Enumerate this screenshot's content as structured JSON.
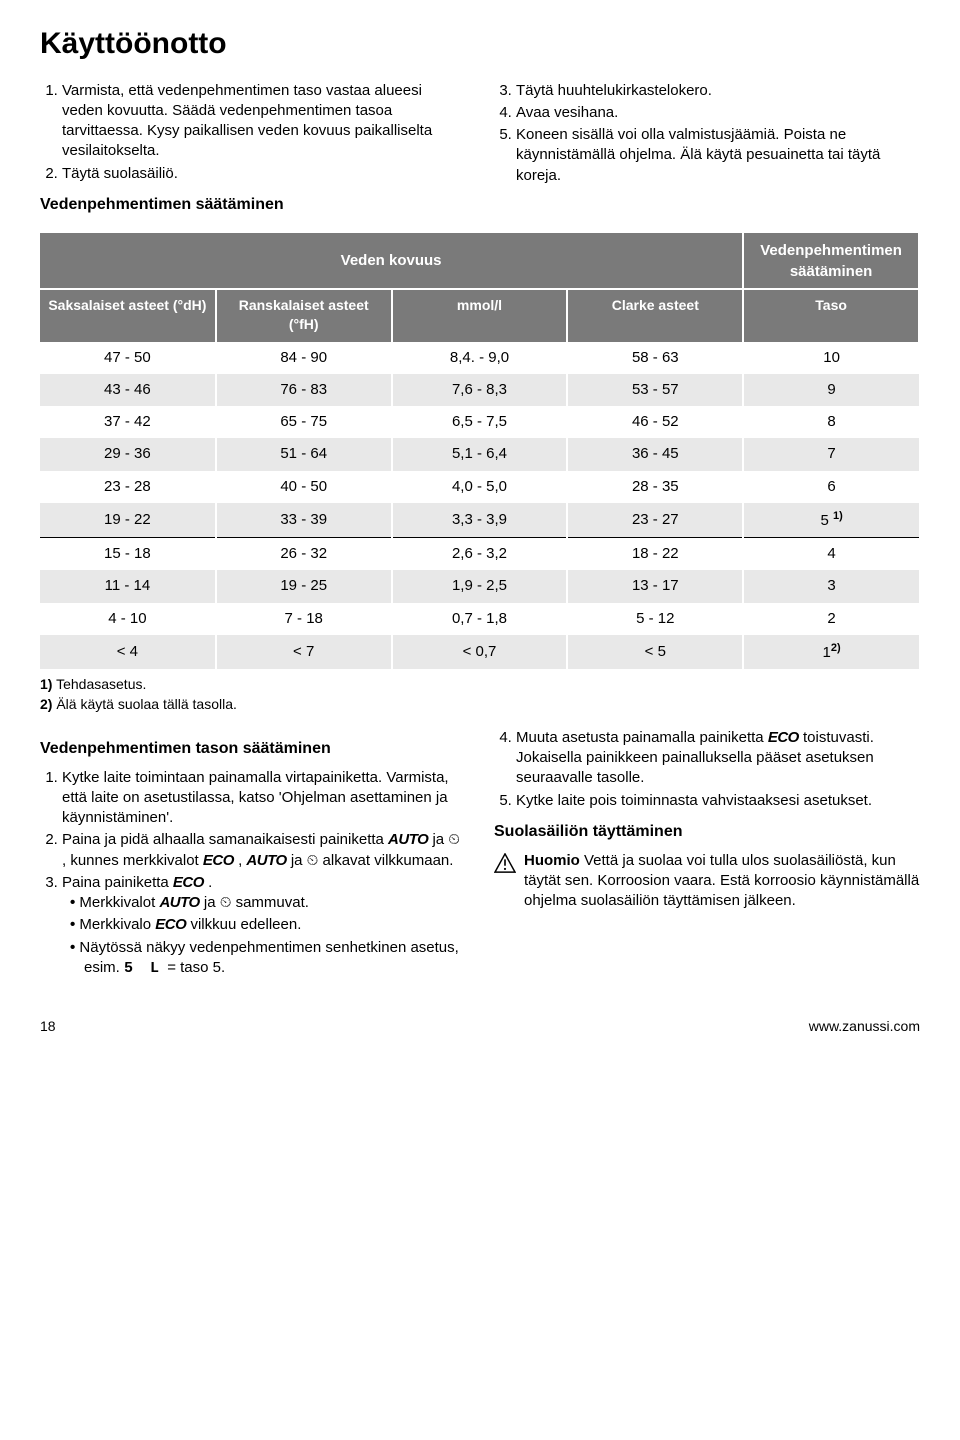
{
  "title": "Käyttöönotto",
  "left_list": [
    "Varmista, että vedenpehmentimen taso vastaa alueesi veden kovuutta. Säädä vedenpehmentimen tasoa tarvittaessa. Kysy paikallisen veden kovuus paikalliselta vesilaitokselta.",
    "Täytä suolasäiliö."
  ],
  "left_subhead": "Vedenpehmentimen säätäminen",
  "right_list_start": 3,
  "right_list": [
    "Täytä huuhtelukirkastelokero.",
    "Avaa vesihana.",
    "Koneen sisällä voi olla valmistusjäämiä. Poista ne käynnistämällä ohjelma. Älä käytä pesuainetta tai täytä koreja."
  ],
  "table": {
    "header_main_left": "Veden kovuus",
    "header_main_right": "Vedenpehmentimen säätäminen",
    "columns": [
      "Saksalaiset asteet (°dH)",
      "Ranskalaiset asteet (°fH)",
      "mmol/l",
      "Clarke asteet",
      "Taso"
    ],
    "col_widths": [
      "20%",
      "20%",
      "20%",
      "20%",
      "20%"
    ],
    "header_bg": "#7a7a7a",
    "header_fg": "#ffffff",
    "row_alt_bg": "#e8e8e8",
    "rows": [
      [
        "47 - 50",
        "84 - 90",
        "8,4. - 9,0",
        "58 - 63",
        "10"
      ],
      [
        "43 - 46",
        "76 - 83",
        "7,6 - 8,3",
        "53 - 57",
        "9"
      ],
      [
        "37 - 42",
        "65 - 75",
        "6,5 - 7,5",
        "46 - 52",
        "8"
      ],
      [
        "29 - 36",
        "51 - 64",
        "5,1 - 6,4",
        "36 - 45",
        "7"
      ],
      [
        "23 - 28",
        "40 - 50",
        "4,0 - 5,0",
        "28 - 35",
        "6"
      ],
      [
        "19 - 22",
        "33 - 39",
        "3,3 - 3,9",
        "23 - 27",
        "5 __SUP1__"
      ],
      [
        "15 - 18",
        "26 - 32",
        "2,6 - 3,2",
        "18 - 22",
        "4"
      ],
      [
        "11 - 14",
        "19 - 25",
        "1,9 - 2,5",
        "13 - 17",
        "3"
      ],
      [
        "4 - 10",
        "7 - 18",
        "0,7 - 1,8",
        "5 - 12",
        "2"
      ],
      [
        "< 4",
        "< 7",
        "< 0,7",
        "< 5",
        "1__SUP2__"
      ]
    ]
  },
  "footnote1": "1) Tehdasasetus.",
  "footnote2": "2) Älä käytä suolaa tällä tasolla.",
  "section2_left_head": "Vedenpehmentimen tason säätäminen",
  "section2_left_item1": "Kytke laite toimintaan painamalla virtapainiketta. Varmista, että laite on asetustilassa, katso 'Ohjelman asettaminen ja käynnistäminen'.",
  "section2_left_item2_a": "Paina ja pidä alhaalla samanaikaisesti painiketta ",
  "section2_left_item2_b": " ja ",
  "section2_left_item2_c": " , kunnes merkkivalot ",
  "section2_left_item2_d": " , ",
  "section2_left_item2_e": " ja ",
  "section2_left_item2_f": " alkavat vilkkumaan.",
  "section2_left_item3_a": "Paina painiketta ",
  "section2_left_item3_b": " .",
  "bullet1_a": "Merkkivalot ",
  "bullet1_b": " ja ",
  "bullet1_c": " sammuvat.",
  "bullet2_a": "Merkkivalo ",
  "bullet2_b": " vilkkuu edelleen.",
  "bullet3_a": "Näytössä näkyy vedenpehmentimen senhetkinen asetus, esim. ",
  "bullet3_b": " = taso 5.",
  "disp_val": "5 L",
  "section2_right_item4_a": "Muuta asetusta painamalla painiketta ",
  "section2_right_item4_b": " toistuvasti. Jokaisella painikkeen painalluksella pääset asetuksen seuraavalle tasolle.",
  "section2_right_item5": "Kytke laite pois toiminnasta vahvistaaksesi asetukset.",
  "section2_right_head": "Suolasäiliön täyttäminen",
  "warn_label": "Huomio",
  "warn_text": " Vettä ja suolaa voi tulla ulos suolasäiliöstä, kun täytät sen. Korroosion vaara. Estä korroosio käynnistämällä ohjelma suolasäiliön täyttämisen jälkeen.",
  "icons": {
    "auto": "AUTO",
    "eco": "ECO"
  },
  "page_num": "18",
  "site": "www.zanussi.com"
}
